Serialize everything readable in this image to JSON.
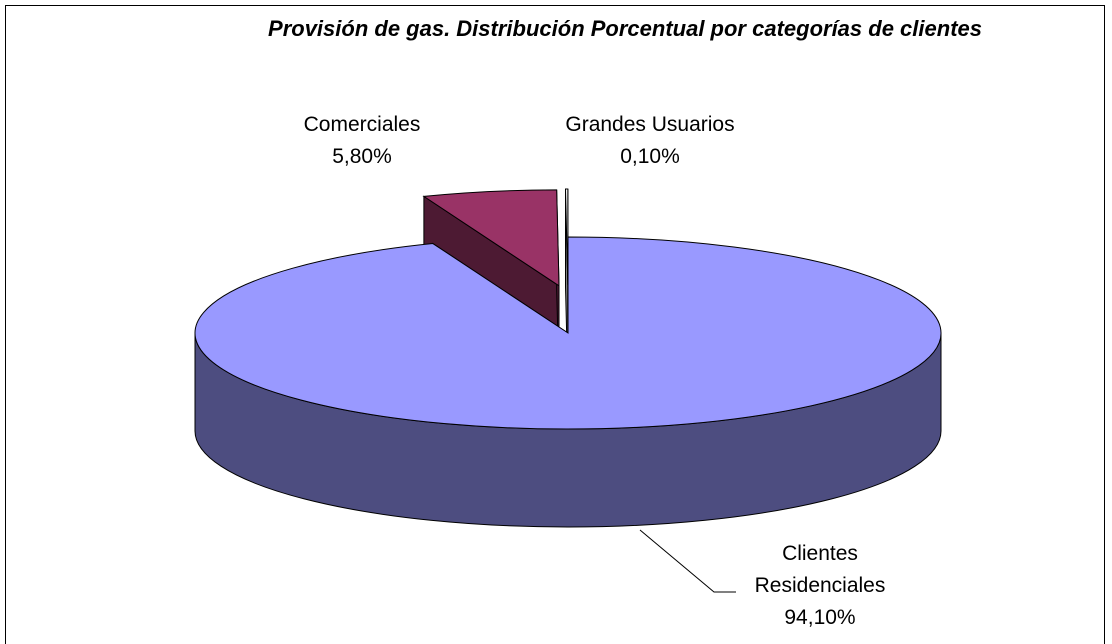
{
  "chart_data": {
    "type": "pie",
    "title": "Provisión de gas. Distribución Porcentual por categorías de clientes",
    "categories": [
      "Clientes Residenciales",
      "Comerciales",
      "Grandes Usuarios"
    ],
    "values": [
      94.1,
      5.8,
      0.1
    ],
    "value_labels": [
      "94,10%",
      "5,80%",
      "0,10%"
    ],
    "colors": [
      "#9999ff",
      "#993366",
      "#ffffff"
    ]
  }
}
